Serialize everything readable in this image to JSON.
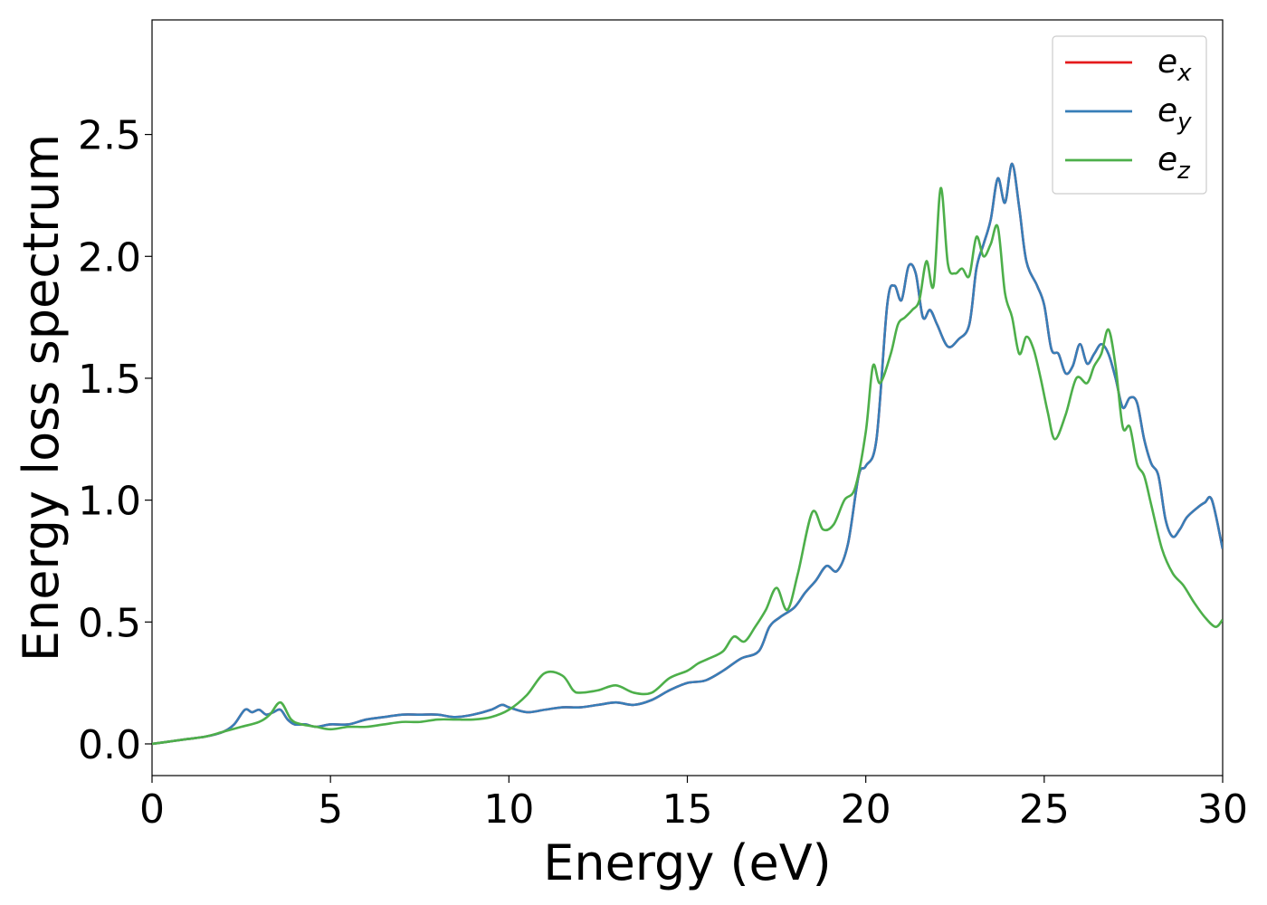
{
  "chart_data": {
    "type": "line",
    "title": "",
    "xlabel": "Energy (eV)",
    "ylabel": "Energy loss spectrum",
    "xlim": [
      0,
      30
    ],
    "ylim": [
      -0.13,
      2.97
    ],
    "xticks": [
      0,
      5,
      10,
      15,
      20,
      25,
      30
    ],
    "yticks": [
      0.0,
      0.5,
      1.0,
      1.5,
      2.0,
      2.5
    ],
    "grid": false,
    "legend_position": "top-right",
    "series": [
      {
        "name": "e_x",
        "legend_base": "e",
        "legend_sub": "x",
        "color": "#e41a1c",
        "x": [
          0,
          0.5,
          1,
          1.5,
          2,
          2.3,
          2.6,
          2.8,
          3,
          3.2,
          3.4,
          3.6,
          3.8,
          4,
          4.3,
          4.6,
          5,
          5.5,
          6,
          6.5,
          7,
          7.5,
          8,
          8.5,
          9,
          9.5,
          9.8,
          10,
          10.5,
          11,
          11.5,
          12,
          12.5,
          13,
          13.5,
          14,
          14.5,
          15,
          15.5,
          16,
          16.5,
          17,
          17.3,
          17.6,
          18,
          18.3,
          18.6,
          18.9,
          19.2,
          19.5,
          19.8,
          20,
          20.3,
          20.6,
          20.8,
          21,
          21.2,
          21.4,
          21.6,
          21.8,
          22,
          22.3,
          22.6,
          22.9,
          23.1,
          23.3,
          23.5,
          23.7,
          23.9,
          24.1,
          24.3,
          24.5,
          24.8,
          25,
          25.2,
          25.4,
          25.6,
          25.8,
          26,
          26.2,
          26.4,
          26.6,
          26.8,
          27,
          27.2,
          27.4,
          27.6,
          27.8,
          28,
          28.2,
          28.4,
          28.6,
          28.8,
          29,
          29.3,
          29.5,
          29.7,
          30
        ],
        "y": [
          0,
          0.01,
          0.02,
          0.03,
          0.05,
          0.08,
          0.14,
          0.13,
          0.14,
          0.12,
          0.13,
          0.14,
          0.1,
          0.08,
          0.08,
          0.07,
          0.08,
          0.08,
          0.1,
          0.11,
          0.12,
          0.12,
          0.12,
          0.11,
          0.12,
          0.14,
          0.16,
          0.15,
          0.13,
          0.14,
          0.15,
          0.15,
          0.16,
          0.17,
          0.16,
          0.18,
          0.22,
          0.25,
          0.26,
          0.3,
          0.35,
          0.38,
          0.48,
          0.52,
          0.56,
          0.62,
          0.67,
          0.73,
          0.71,
          0.82,
          1.1,
          1.14,
          1.25,
          1.8,
          1.88,
          1.82,
          1.96,
          1.93,
          1.75,
          1.78,
          1.72,
          1.63,
          1.66,
          1.72,
          1.95,
          2.05,
          2.15,
          2.32,
          2.22,
          2.38,
          2.2,
          1.98,
          1.88,
          1.8,
          1.62,
          1.6,
          1.52,
          1.55,
          1.64,
          1.56,
          1.6,
          1.64,
          1.6,
          1.5,
          1.38,
          1.42,
          1.4,
          1.25,
          1.15,
          1.1,
          0.92,
          0.85,
          0.88,
          0.93,
          0.97,
          0.99,
          1.0,
          0.8
        ]
      },
      {
        "name": "e_y",
        "legend_base": "e",
        "legend_sub": "y",
        "color": "#377eb8",
        "x": [
          0,
          0.5,
          1,
          1.5,
          2,
          2.3,
          2.6,
          2.8,
          3,
          3.2,
          3.4,
          3.6,
          3.8,
          4,
          4.3,
          4.6,
          5,
          5.5,
          6,
          6.5,
          7,
          7.5,
          8,
          8.5,
          9,
          9.5,
          9.8,
          10,
          10.5,
          11,
          11.5,
          12,
          12.5,
          13,
          13.5,
          14,
          14.5,
          15,
          15.5,
          16,
          16.5,
          17,
          17.3,
          17.6,
          18,
          18.3,
          18.6,
          18.9,
          19.2,
          19.5,
          19.8,
          20,
          20.3,
          20.6,
          20.8,
          21,
          21.2,
          21.4,
          21.6,
          21.8,
          22,
          22.3,
          22.6,
          22.9,
          23.1,
          23.3,
          23.5,
          23.7,
          23.9,
          24.1,
          24.3,
          24.5,
          24.8,
          25,
          25.2,
          25.4,
          25.6,
          25.8,
          26,
          26.2,
          26.4,
          26.6,
          26.8,
          27,
          27.2,
          27.4,
          27.6,
          27.8,
          28,
          28.2,
          28.4,
          28.6,
          28.8,
          29,
          29.3,
          29.5,
          29.7,
          30
        ],
        "y": [
          0,
          0.01,
          0.02,
          0.03,
          0.05,
          0.08,
          0.14,
          0.13,
          0.14,
          0.12,
          0.13,
          0.14,
          0.1,
          0.08,
          0.08,
          0.07,
          0.08,
          0.08,
          0.1,
          0.11,
          0.12,
          0.12,
          0.12,
          0.11,
          0.12,
          0.14,
          0.16,
          0.15,
          0.13,
          0.14,
          0.15,
          0.15,
          0.16,
          0.17,
          0.16,
          0.18,
          0.22,
          0.25,
          0.26,
          0.3,
          0.35,
          0.38,
          0.48,
          0.52,
          0.56,
          0.62,
          0.67,
          0.73,
          0.71,
          0.82,
          1.1,
          1.14,
          1.25,
          1.8,
          1.88,
          1.82,
          1.96,
          1.93,
          1.75,
          1.78,
          1.72,
          1.63,
          1.66,
          1.72,
          1.95,
          2.05,
          2.15,
          2.32,
          2.22,
          2.38,
          2.2,
          1.98,
          1.88,
          1.8,
          1.62,
          1.6,
          1.52,
          1.55,
          1.64,
          1.56,
          1.6,
          1.64,
          1.6,
          1.5,
          1.38,
          1.42,
          1.4,
          1.25,
          1.15,
          1.1,
          0.92,
          0.85,
          0.88,
          0.93,
          0.97,
          0.99,
          1.0,
          0.8
        ]
      },
      {
        "name": "e_z",
        "legend_base": "e",
        "legend_sub": "z",
        "color": "#4daf4a",
        "x": [
          0,
          0.5,
          1,
          1.5,
          2,
          2.5,
          3,
          3.3,
          3.6,
          3.9,
          4.2,
          4.6,
          5,
          5.5,
          6,
          6.5,
          7,
          7.5,
          8,
          8.5,
          9,
          9.5,
          10,
          10.5,
          11,
          11.5,
          11.8,
          12,
          12.5,
          13,
          13.5,
          14,
          14.5,
          15,
          15.3,
          15.6,
          16,
          16.3,
          16.6,
          16.9,
          17.2,
          17.5,
          17.8,
          18.1,
          18.5,
          18.8,
          19.1,
          19.4,
          19.7,
          20,
          20.2,
          20.4,
          20.7,
          20.9,
          21.1,
          21.3,
          21.5,
          21.7,
          21.9,
          22.1,
          22.3,
          22.5,
          22.7,
          22.9,
          23.1,
          23.3,
          23.5,
          23.7,
          23.9,
          24.1,
          24.3,
          24.5,
          24.7,
          24.9,
          25.1,
          25.3,
          25.6,
          25.9,
          26.2,
          26.4,
          26.6,
          26.8,
          27,
          27.2,
          27.4,
          27.6,
          27.8,
          28,
          28.3,
          28.6,
          28.9,
          29.2,
          29.5,
          29.8,
          30
        ],
        "y": [
          0,
          0.01,
          0.02,
          0.03,
          0.05,
          0.07,
          0.09,
          0.12,
          0.17,
          0.1,
          0.08,
          0.07,
          0.06,
          0.07,
          0.07,
          0.08,
          0.09,
          0.09,
          0.1,
          0.1,
          0.1,
          0.11,
          0.14,
          0.2,
          0.29,
          0.28,
          0.22,
          0.21,
          0.22,
          0.24,
          0.21,
          0.21,
          0.27,
          0.3,
          0.33,
          0.35,
          0.38,
          0.44,
          0.42,
          0.48,
          0.55,
          0.64,
          0.55,
          0.7,
          0.95,
          0.88,
          0.9,
          1.0,
          1.05,
          1.28,
          1.55,
          1.48,
          1.6,
          1.72,
          1.75,
          1.78,
          1.82,
          1.98,
          1.88,
          2.28,
          1.97,
          1.93,
          1.95,
          1.92,
          2.08,
          2.0,
          2.05,
          2.12,
          1.85,
          1.75,
          1.6,
          1.67,
          1.62,
          1.5,
          1.36,
          1.25,
          1.35,
          1.5,
          1.48,
          1.55,
          1.6,
          1.7,
          1.55,
          1.3,
          1.3,
          1.15,
          1.1,
          0.98,
          0.8,
          0.7,
          0.65,
          0.58,
          0.52,
          0.48,
          0.51
        ]
      }
    ]
  }
}
